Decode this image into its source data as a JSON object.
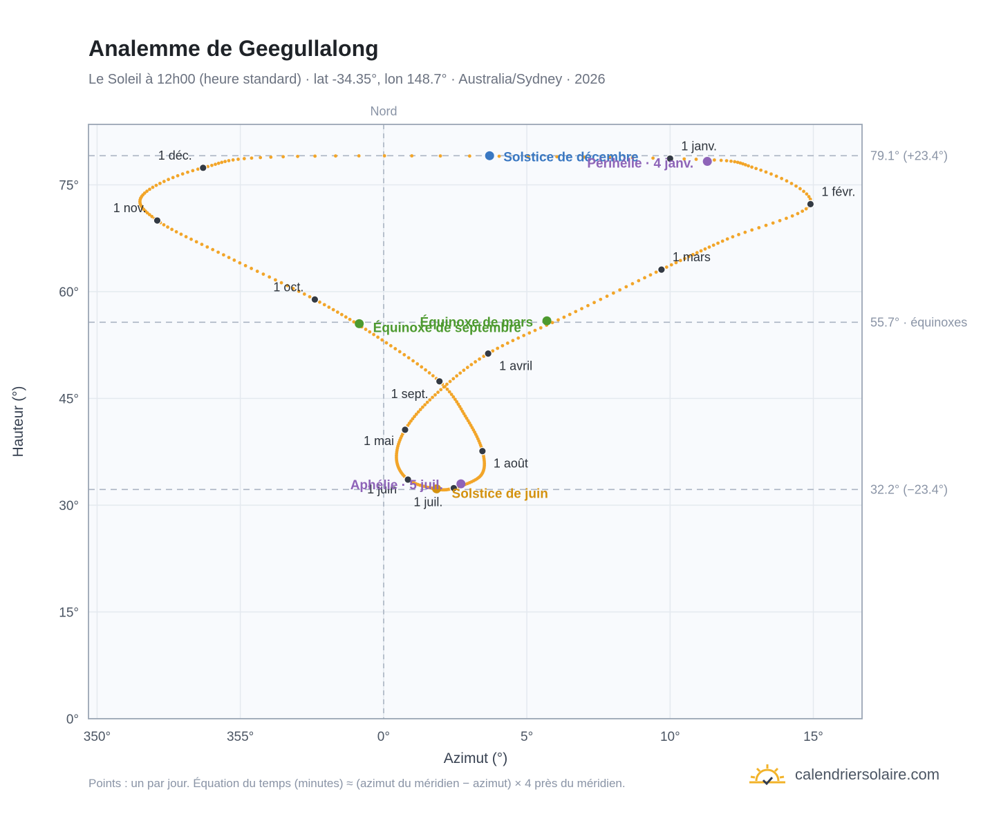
{
  "title": "Analemme de Geegullalong",
  "subtitle": "Le Soleil à 12h00 (heure standard) · lat -34.35°, lon 148.7° · Australia/Sydney · 2026",
  "footnote": "Points : un par jour. Équation du temps (minutes) ≈ (azimut du méridien − azimut) × 4 près du méridien.",
  "brand": "calendriersolaire.com",
  "colors": {
    "curve": "#f2a529",
    "month_marker": "#333a44",
    "december_solstice": "#3a78c2",
    "june_solstice": "#d4920f",
    "equinox": "#4d9a2f",
    "apsis": "#8e64b8",
    "reference_line": "#aab4c2",
    "plot_background": "#f8fafd",
    "grid": "#e4e9ef"
  },
  "chart_data": {
    "type": "scatter",
    "xlabel": "Azimut (°)",
    "ylabel": "Hauteur (°)",
    "xlim": [
      349.7,
      16.7
    ],
    "ylim": [
      0,
      83.5
    ],
    "x_ticks": [
      "350°",
      "355°",
      "0°",
      "5°",
      "10°",
      "15°"
    ],
    "y_ticks": [
      "0°",
      "15°",
      "30°",
      "45°",
      "60°",
      "75°"
    ],
    "north_label": "Nord",
    "grid": true,
    "reference_lines": [
      {
        "altitude": 79.1,
        "label": "79.1° (+23.4°)"
      },
      {
        "altitude": 55.7,
        "label": "55.7° · équinoxes"
      },
      {
        "altitude": 32.2,
        "label": "32.2° (−23.4°)"
      }
    ],
    "month_points": [
      {
        "label": "1 janv.",
        "azimuth": 10.0,
        "altitude": 78.7
      },
      {
        "label": "1 févr.",
        "azimuth": 14.9,
        "altitude": 72.3
      },
      {
        "label": "1 mars",
        "azimuth": 9.7,
        "altitude": 63.1
      },
      {
        "label": "1 avril",
        "azimuth": 3.65,
        "altitude": 51.3
      },
      {
        "label": "1 mai",
        "azimuth": 0.75,
        "altitude": 40.6
      },
      {
        "label": "1 juin",
        "azimuth": 0.85,
        "altitude": 33.6
      },
      {
        "label": "1 juil.",
        "azimuth": 2.45,
        "altitude": 32.4
      },
      {
        "label": "1 août",
        "azimuth": 3.45,
        "altitude": 37.6
      },
      {
        "label": "1 sept.",
        "azimuth": 1.95,
        "altitude": 47.4
      },
      {
        "label": "1 oct.",
        "azimuth": 357.6,
        "altitude": 58.9
      },
      {
        "label": "1 nov.",
        "azimuth": 352.1,
        "altitude": 70.0
      },
      {
        "label": "1 déc.",
        "azimuth": 353.7,
        "altitude": 77.4
      }
    ],
    "events": [
      {
        "label": "Solstice de décembre",
        "azimuth": 3.7,
        "altitude": 79.1,
        "kind": "december_solstice"
      },
      {
        "label": "Périhélie · 4 janv.",
        "azimuth": 11.3,
        "altitude": 78.3,
        "kind": "apsis"
      },
      {
        "label": "Équinoxe de mars",
        "azimuth": 5.7,
        "altitude": 55.9,
        "kind": "equinox"
      },
      {
        "label": "Équinoxe de septembre",
        "azimuth": 359.15,
        "altitude": 55.5,
        "kind": "equinox"
      },
      {
        "label": "Solstice de juin",
        "azimuth": 1.85,
        "altitude": 32.3,
        "kind": "june_solstice"
      },
      {
        "label": "Aphélie · 5 juil.",
        "azimuth": 2.7,
        "altitude": 33.0,
        "kind": "apsis"
      }
    ]
  }
}
